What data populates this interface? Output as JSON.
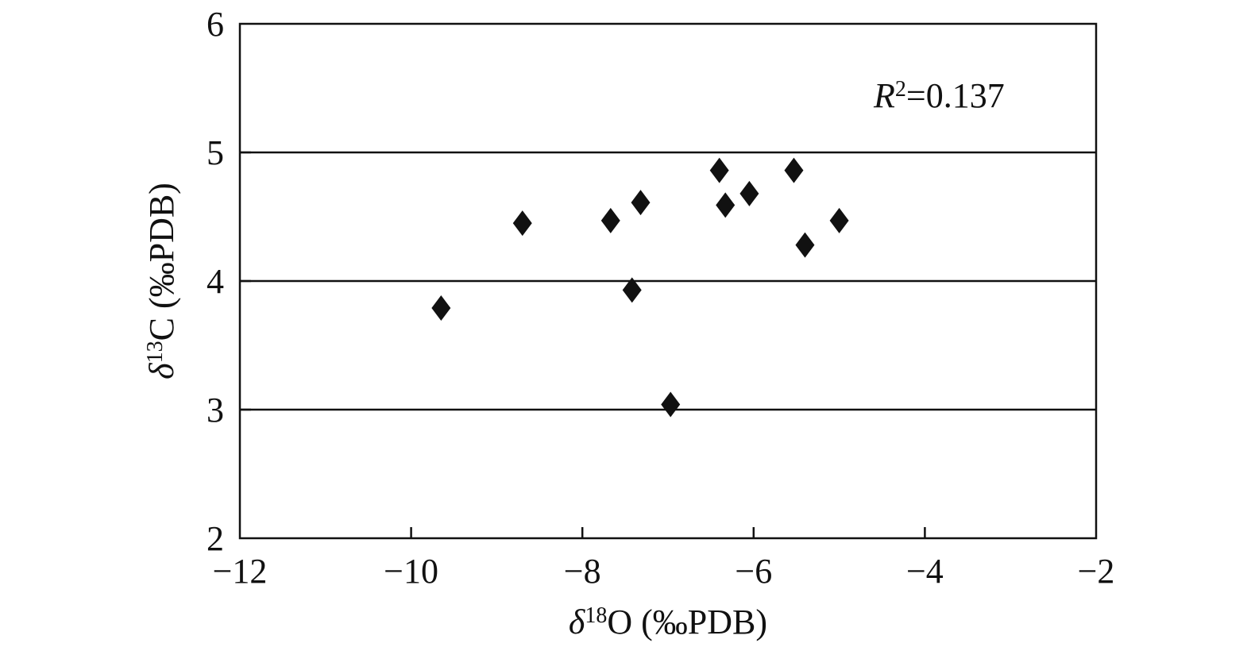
{
  "chart_data": {
    "type": "scatter",
    "xlabel": {
      "symbol": "δ",
      "sup": "18",
      "rest": "O (‰PDB)"
    },
    "ylabel": {
      "symbol": "δ",
      "sup": "13",
      "rest": "C (‰PDB)"
    },
    "xlim": [
      -12,
      -2
    ],
    "ylim": [
      2,
      6
    ],
    "xticks": [
      -12,
      -10,
      -8,
      -6,
      -4,
      -2
    ],
    "yticks": [
      2,
      3,
      4,
      5,
      6
    ],
    "xtick_labels": [
      "−12",
      "−10",
      "−8",
      "−6",
      "−4",
      "−2"
    ],
    "ytick_labels": [
      "2",
      "3",
      "4",
      "5",
      "6"
    ],
    "grid": {
      "y": true,
      "x": false
    },
    "marker": "diamond",
    "marker_color": "#111111",
    "annotation": {
      "var": "R",
      "sup": "2",
      "rest": "=0.137"
    },
    "series": [
      {
        "points": [
          {
            "x": -9.65,
            "y": 3.79
          },
          {
            "x": -8.7,
            "y": 4.45
          },
          {
            "x": -7.67,
            "y": 4.47
          },
          {
            "x": -7.32,
            "y": 4.61
          },
          {
            "x": -7.42,
            "y": 3.93
          },
          {
            "x": -6.97,
            "y": 3.04
          },
          {
            "x": -6.4,
            "y": 4.86
          },
          {
            "x": -6.33,
            "y": 4.59
          },
          {
            "x": -6.05,
            "y": 4.68
          },
          {
            "x": -5.53,
            "y": 4.86
          },
          {
            "x": -5.4,
            "y": 4.28
          },
          {
            "x": -5.0,
            "y": 4.47
          }
        ]
      }
    ]
  }
}
